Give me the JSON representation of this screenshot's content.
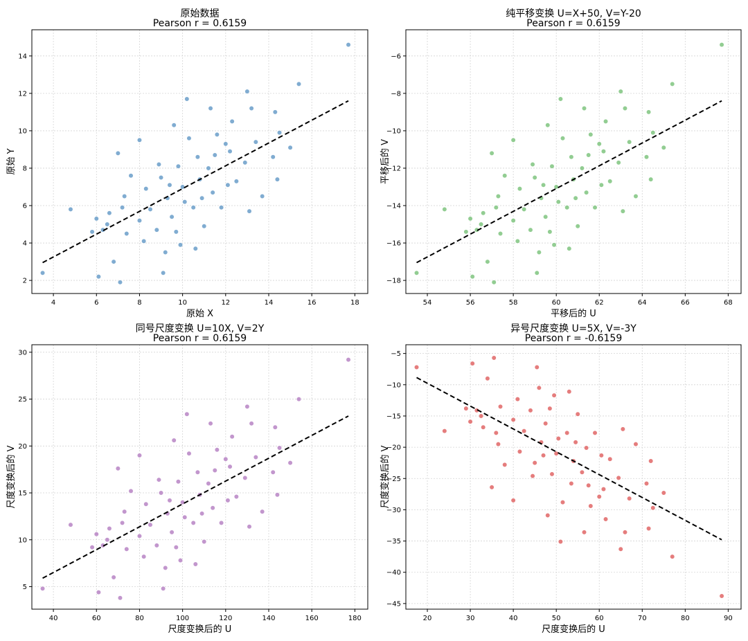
{
  "chart_data": [
    {
      "type": "scatter",
      "title": "原始数据",
      "subtitle": "Pearson r = 0.6159",
      "xlabel": "原始 X",
      "ylabel": "原始 Y",
      "xlim": [
        3,
        18.6
      ],
      "ylim": [
        1.3,
        15.4
      ],
      "xticks": [
        4,
        6,
        8,
        10,
        12,
        14,
        16,
        18
      ],
      "yticks": [
        2,
        4,
        6,
        8,
        10,
        12,
        14
      ],
      "xtick_labels": [
        "4",
        "6",
        "8",
        "10",
        "12",
        "14",
        "16",
        "18"
      ],
      "ytick_labels": [
        "2",
        "4",
        "6",
        "8",
        "10",
        "12",
        "14"
      ],
      "color": "#6a9ec9",
      "fit_line": {
        "x": [
          3.5,
          17.7
        ],
        "y": [
          2.95,
          11.6
        ]
      },
      "points": [
        [
          17.7,
          14.6
        ],
        [
          15.4,
          12.5
        ],
        [
          13.0,
          12.1
        ],
        [
          14.3,
          11.0
        ],
        [
          10.2,
          11.7
        ],
        [
          3.5,
          2.4
        ],
        [
          6.1,
          2.2
        ],
        [
          7.1,
          1.9
        ],
        [
          9.1,
          2.4
        ],
        [
          4.8,
          5.8
        ],
        [
          14.4,
          7.4
        ],
        [
          13.7,
          6.5
        ],
        [
          13.1,
          5.7
        ],
        [
          10.6,
          3.7
        ],
        [
          15.0,
          9.1
        ],
        [
          14.5,
          9.9
        ],
        [
          6.3,
          4.7
        ],
        [
          6.8,
          3.0
        ],
        [
          7.0,
          8.8
        ],
        [
          8.0,
          9.5
        ],
        [
          9.6,
          10.3
        ],
        [
          11.3,
          11.2
        ],
        [
          12.3,
          10.5
        ],
        [
          13.2,
          11.2
        ],
        [
          14.2,
          8.6
        ],
        [
          12.0,
          9.3
        ],
        [
          11.6,
          9.8
        ],
        [
          10.3,
          9.6
        ],
        [
          8.9,
          8.2
        ],
        [
          7.6,
          7.6
        ],
        [
          7.3,
          6.5
        ],
        [
          6.0,
          5.3
        ],
        [
          5.8,
          4.6
        ],
        [
          6.5,
          5.0
        ],
        [
          8.2,
          4.1
        ],
        [
          9.2,
          3.5
        ],
        [
          9.7,
          4.6
        ],
        [
          11.0,
          4.9
        ],
        [
          11.8,
          5.9
        ],
        [
          12.5,
          7.3
        ],
        [
          12.9,
          8.3
        ],
        [
          11.2,
          8.0
        ],
        [
          10.0,
          7.0
        ],
        [
          9.3,
          6.4
        ],
        [
          8.5,
          5.8
        ],
        [
          8.0,
          5.2
        ],
        [
          7.4,
          4.5
        ],
        [
          6.6,
          5.6
        ],
        [
          7.2,
          5.9
        ],
        [
          8.3,
          6.9
        ],
        [
          9.0,
          7.5
        ],
        [
          9.8,
          8.1
        ],
        [
          10.7,
          8.6
        ],
        [
          11.5,
          8.7
        ],
        [
          12.2,
          8.9
        ],
        [
          13.4,
          9.4
        ],
        [
          10.9,
          6.4
        ],
        [
          10.5,
          5.9
        ],
        [
          11.4,
          6.7
        ],
        [
          12.1,
          7.1
        ],
        [
          9.5,
          5.4
        ],
        [
          8.8,
          4.7
        ],
        [
          9.9,
          3.9
        ],
        [
          10.8,
          7.4
        ],
        [
          10.1,
          6.2
        ],
        [
          9.4,
          7.1
        ]
      ]
    },
    {
      "type": "scatter",
      "title": "纯平移变换 U=X+50, V=Y-20",
      "subtitle": "Pearson r = 0.6159",
      "xlabel": "平移后的 U",
      "ylabel": "平移后的 V",
      "xlim": [
        53,
        68.6
      ],
      "ylim": [
        -18.7,
        -4.6
      ],
      "xticks": [
        54,
        56,
        58,
        60,
        62,
        64,
        66,
        68
      ],
      "yticks": [
        -18,
        -16,
        -14,
        -12,
        -10,
        -8,
        -6
      ],
      "xtick_labels": [
        "54",
        "56",
        "58",
        "60",
        "62",
        "64",
        "66",
        "68"
      ],
      "ytick_labels": [
        "−18",
        "−16",
        "−14",
        "−12",
        "−10",
        "−8",
        "−6"
      ],
      "color": "#7fc47f",
      "fit_line": {
        "x": [
          53.5,
          67.7
        ],
        "y": [
          -17.05,
          -8.4
        ]
      },
      "points": [
        [
          67.7,
          -5.4
        ],
        [
          65.4,
          -7.5
        ],
        [
          63.0,
          -7.9
        ],
        [
          64.3,
          -9.0
        ],
        [
          60.2,
          -8.3
        ],
        [
          53.5,
          -17.6
        ],
        [
          56.1,
          -17.8
        ],
        [
          57.1,
          -18.1
        ],
        [
          59.1,
          -17.6
        ],
        [
          54.8,
          -14.2
        ],
        [
          64.4,
          -12.6
        ],
        [
          63.7,
          -13.5
        ],
        [
          63.1,
          -14.3
        ],
        [
          60.6,
          -16.3
        ],
        [
          65.0,
          -10.9
        ],
        [
          64.5,
          -10.1
        ],
        [
          56.3,
          -15.3
        ],
        [
          56.8,
          -17.0
        ],
        [
          57.0,
          -11.2
        ],
        [
          58.0,
          -10.5
        ],
        [
          59.6,
          -9.7
        ],
        [
          61.3,
          -8.8
        ],
        [
          62.3,
          -9.5
        ],
        [
          63.2,
          -8.8
        ],
        [
          64.2,
          -11.4
        ],
        [
          62.0,
          -10.7
        ],
        [
          61.6,
          -10.2
        ],
        [
          60.3,
          -10.4
        ],
        [
          58.9,
          -11.8
        ],
        [
          57.6,
          -12.4
        ],
        [
          57.3,
          -13.5
        ],
        [
          56.0,
          -14.7
        ],
        [
          55.8,
          -15.4
        ],
        [
          56.5,
          -15.0
        ],
        [
          58.2,
          -15.9
        ],
        [
          59.2,
          -16.5
        ],
        [
          59.7,
          -15.4
        ],
        [
          61.0,
          -15.1
        ],
        [
          61.8,
          -14.1
        ],
        [
          62.5,
          -12.7
        ],
        [
          62.9,
          -11.7
        ],
        [
          61.2,
          -12.0
        ],
        [
          60.0,
          -13.0
        ],
        [
          59.3,
          -13.6
        ],
        [
          58.5,
          -14.2
        ],
        [
          58.0,
          -14.8
        ],
        [
          57.4,
          -15.5
        ],
        [
          56.6,
          -14.4
        ],
        [
          57.2,
          -14.1
        ],
        [
          58.3,
          -13.1
        ],
        [
          59.0,
          -12.5
        ],
        [
          59.8,
          -11.9
        ],
        [
          60.7,
          -11.4
        ],
        [
          61.5,
          -11.3
        ],
        [
          62.2,
          -11.1
        ],
        [
          63.4,
          -10.6
        ],
        [
          60.9,
          -13.6
        ],
        [
          60.5,
          -14.1
        ],
        [
          61.4,
          -13.3
        ],
        [
          62.1,
          -12.9
        ],
        [
          59.5,
          -14.6
        ],
        [
          58.8,
          -15.3
        ],
        [
          59.9,
          -16.1
        ],
        [
          60.8,
          -12.6
        ],
        [
          60.1,
          -13.8
        ],
        [
          59.4,
          -12.9
        ]
      ]
    },
    {
      "type": "scatter",
      "title": "同号尺度变换 U=10X, V=2Y",
      "subtitle": "Pearson r = 0.6159",
      "xlabel": "尺度变换后的 U",
      "ylabel": "尺度变换后的 V",
      "xlim": [
        30,
        186
      ],
      "ylim": [
        2.6,
        30.8
      ],
      "xticks": [
        40,
        60,
        80,
        100,
        120,
        140,
        160,
        180
      ],
      "yticks": [
        5,
        10,
        15,
        20,
        25,
        30
      ],
      "xtick_labels": [
        "40",
        "60",
        "80",
        "100",
        "120",
        "140",
        "160",
        "180"
      ],
      "ytick_labels": [
        "5",
        "10",
        "15",
        "20",
        "25",
        "30"
      ],
      "color": "#b784c4",
      "fit_line": {
        "x": [
          35,
          177
        ],
        "y": [
          5.9,
          23.2
        ]
      },
      "points": [
        [
          177,
          29.2
        ],
        [
          154,
          25.0
        ],
        [
          130,
          24.2
        ],
        [
          143,
          22.0
        ],
        [
          102,
          23.4
        ],
        [
          35,
          4.8
        ],
        [
          61,
          4.4
        ],
        [
          71,
          3.8
        ],
        [
          91,
          4.8
        ],
        [
          48,
          11.6
        ],
        [
          144,
          14.8
        ],
        [
          137,
          13.0
        ],
        [
          131,
          11.4
        ],
        [
          106,
          7.4
        ],
        [
          150,
          18.2
        ],
        [
          145,
          19.8
        ],
        [
          63,
          9.4
        ],
        [
          68,
          6.0
        ],
        [
          70,
          17.6
        ],
        [
          80,
          19.0
        ],
        [
          96,
          20.6
        ],
        [
          113,
          22.4
        ],
        [
          123,
          21.0
        ],
        [
          132,
          22.4
        ],
        [
          142,
          17.2
        ],
        [
          120,
          18.6
        ],
        [
          116,
          19.6
        ],
        [
          103,
          19.2
        ],
        [
          89,
          16.4
        ],
        [
          76,
          15.2
        ],
        [
          73,
          13.0
        ],
        [
          60,
          10.6
        ],
        [
          58,
          9.2
        ],
        [
          65,
          10.0
        ],
        [
          82,
          8.2
        ],
        [
          92,
          7.0
        ],
        [
          97,
          9.2
        ],
        [
          110,
          9.8
        ],
        [
          118,
          11.8
        ],
        [
          125,
          14.6
        ],
        [
          129,
          16.6
        ],
        [
          112,
          16.0
        ],
        [
          100,
          14.0
        ],
        [
          93,
          12.8
        ],
        [
          85,
          11.6
        ],
        [
          80,
          10.4
        ],
        [
          74,
          9.0
        ],
        [
          66,
          11.2
        ],
        [
          72,
          11.8
        ],
        [
          83,
          13.8
        ],
        [
          90,
          15.0
        ],
        [
          98,
          16.2
        ],
        [
          107,
          17.2
        ],
        [
          115,
          17.4
        ],
        [
          122,
          17.8
        ],
        [
          134,
          18.8
        ],
        [
          109,
          12.8
        ],
        [
          105,
          11.8
        ],
        [
          114,
          13.4
        ],
        [
          121,
          14.2
        ],
        [
          95,
          10.8
        ],
        [
          88,
          9.4
        ],
        [
          99,
          7.8
        ],
        [
          108,
          14.8
        ],
        [
          101,
          12.4
        ],
        [
          94,
          14.2
        ]
      ]
    },
    {
      "type": "scatter",
      "title": "异号尺度变换 U=5X, V=-3Y",
      "subtitle": "Pearson r = -0.6159",
      "xlabel": "尺度变换后的 U",
      "ylabel": "尺度变换后的 V",
      "xlim": [
        15,
        93
      ],
      "ylim": [
        -45.9,
        -3.6
      ],
      "xticks": [
        20,
        30,
        40,
        50,
        60,
        70,
        80,
        90
      ],
      "yticks": [
        -45,
        -40,
        -35,
        -30,
        -25,
        -20,
        -15,
        -10,
        -5
      ],
      "xtick_labels": [
        "20",
        "30",
        "40",
        "50",
        "60",
        "70",
        "80",
        "90"
      ],
      "ytick_labels": [
        "−45",
        "−40",
        "−35",
        "−30",
        "−25",
        "−20",
        "−15",
        "−10",
        "−5"
      ],
      "color": "#e06666",
      "fit_line": {
        "x": [
          17.5,
          88.5
        ],
        "y": [
          -8.85,
          -34.8
        ]
      },
      "points": [
        [
          88.5,
          -43.8
        ],
        [
          77,
          -37.5
        ],
        [
          65,
          -36.3
        ],
        [
          71.5,
          -33.0
        ],
        [
          51,
          -35.1
        ],
        [
          17.5,
          -7.2
        ],
        [
          30.5,
          -6.6
        ],
        [
          35.5,
          -5.7
        ],
        [
          45.5,
          -7.2
        ],
        [
          24,
          -17.4
        ],
        [
          72,
          -22.2
        ],
        [
          68.5,
          -19.5
        ],
        [
          65.5,
          -17.1
        ],
        [
          53,
          -11.1
        ],
        [
          75,
          -27.3
        ],
        [
          72.5,
          -29.7
        ],
        [
          31.5,
          -14.1
        ],
        [
          34,
          -9.0
        ],
        [
          35,
          -26.4
        ],
        [
          40,
          -28.5
        ],
        [
          48,
          -30.9
        ],
        [
          56.5,
          -33.6
        ],
        [
          61.5,
          -31.5
        ],
        [
          66,
          -33.6
        ],
        [
          71,
          -25.8
        ],
        [
          60,
          -27.9
        ],
        [
          58,
          -29.4
        ],
        [
          51.5,
          -28.8
        ],
        [
          44.5,
          -24.6
        ],
        [
          38,
          -22.8
        ],
        [
          36.5,
          -19.5
        ],
        [
          30,
          -15.9
        ],
        [
          29,
          -13.8
        ],
        [
          32.5,
          -15.0
        ],
        [
          41,
          -12.3
        ],
        [
          46,
          -10.5
        ],
        [
          48.5,
          -13.8
        ],
        [
          55,
          -14.7
        ],
        [
          59,
          -17.7
        ],
        [
          62.5,
          -21.9
        ],
        [
          64.5,
          -24.9
        ],
        [
          56,
          -24.0
        ],
        [
          50,
          -21.0
        ],
        [
          46.5,
          -19.2
        ],
        [
          42.5,
          -17.4
        ],
        [
          40,
          -15.6
        ],
        [
          37,
          -13.5
        ],
        [
          33,
          -16.8
        ],
        [
          36,
          -17.7
        ],
        [
          41.5,
          -20.7
        ],
        [
          45,
          -22.5
        ],
        [
          49,
          -24.3
        ],
        [
          53.5,
          -25.8
        ],
        [
          57.5,
          -26.1
        ],
        [
          61,
          -26.7
        ],
        [
          67,
          -28.2
        ],
        [
          54.5,
          -19.2
        ],
        [
          52.5,
          -17.7
        ],
        [
          57,
          -20.1
        ],
        [
          60.5,
          -21.3
        ],
        [
          47.5,
          -16.2
        ],
        [
          44,
          -14.1
        ],
        [
          49.5,
          -11.7
        ],
        [
          54,
          -22.2
        ],
        [
          50.5,
          -18.6
        ],
        [
          47,
          -21.3
        ]
      ]
    }
  ]
}
